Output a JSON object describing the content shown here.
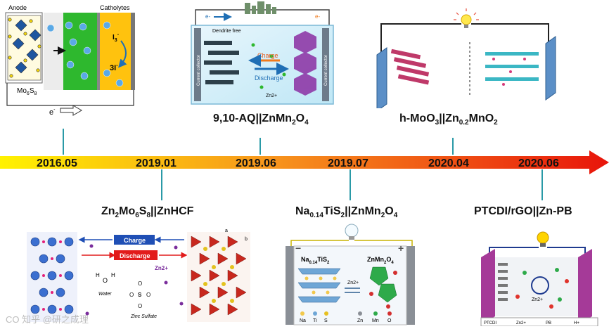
{
  "timeline": {
    "dates": [
      "2016.05",
      "2019.01",
      "2019.06",
      "2019.07",
      "2020.04",
      "2020.06"
    ]
  },
  "systems": {
    "aq": {
      "a": "9,10-AQ||ZnMn",
      "s1": "2",
      "b": "O",
      "s2": "4"
    },
    "moo3": {
      "a": "h-MoO",
      "s1": "3",
      "b": "||Zn",
      "s2": "0.2",
      "c": "MnO",
      "s3": "2"
    },
    "zmo": {
      "a": "Zn",
      "s1": "2",
      "b": "Mo",
      "s2": "6",
      "c": "S",
      "s3": "8",
      "d": "||ZnHCF"
    },
    "nts": {
      "a": "Na",
      "s1": "0.14",
      "b": "TiS",
      "s2": "2",
      "c": "||ZnMn",
      "s3": "2",
      "d": "O",
      "s4": "4"
    },
    "ptcdi": {
      "a": "PTCDI/rGO||Zn-PB"
    }
  },
  "panel1": {
    "anode": "Anode",
    "catholytes": "Catholytes",
    "mo": "Mo",
    "mo_sub": "6",
    "s": "S",
    "s_sub": "8",
    "i3": "I",
    "i3_sub": "3",
    "i3_sup": "-",
    "i": "3I",
    "i_sup": "-",
    "electron": "e",
    "electron_sup": "-",
    "zn": "Zn2+"
  },
  "panel2": {
    "dendrite": "Dendrite free",
    "charge": "Charge",
    "discharge": "Discharge",
    "electron_left": "e-",
    "electron_right": "e-",
    "zn": "Zn2+",
    "left_label": "Current collector",
    "right_label": "Current collector"
  },
  "panel4": {
    "charge": "Charge",
    "discharge": "Discharge",
    "zn": "Zn2+",
    "water": "Water",
    "sulfate": "Zinc Sulfate",
    "axis_a": "a",
    "axis_b": "b",
    "h": "H",
    "o": "O"
  },
  "panel5": {
    "left_a": "Na",
    "left_sub1": "0.14",
    "left_b": "TiS",
    "left_sub2": "2",
    "right_a": "ZnMn",
    "right_sub1": "2",
    "right_b": "O",
    "right_sub2": "4",
    "zn": "Zn2+",
    "legend": [
      "Na",
      "Ti",
      "S",
      "Zn",
      "Mn",
      "O"
    ],
    "minus": "−",
    "plus": "+",
    "axis_x": "x",
    "axis_y": "y",
    "axis_z": "z"
  },
  "panel6": {
    "zn": "Zn2+",
    "legend": [
      "PTCDI",
      "Zn2+",
      "PB",
      "H+"
    ]
  },
  "watermark": "CO 知乎 @研之成理",
  "colors": {
    "stem": "#2a9aa7",
    "arrow_start": "#fff200",
    "arrow_mid": "#f7941d",
    "arrow_end": "#e8150b"
  }
}
